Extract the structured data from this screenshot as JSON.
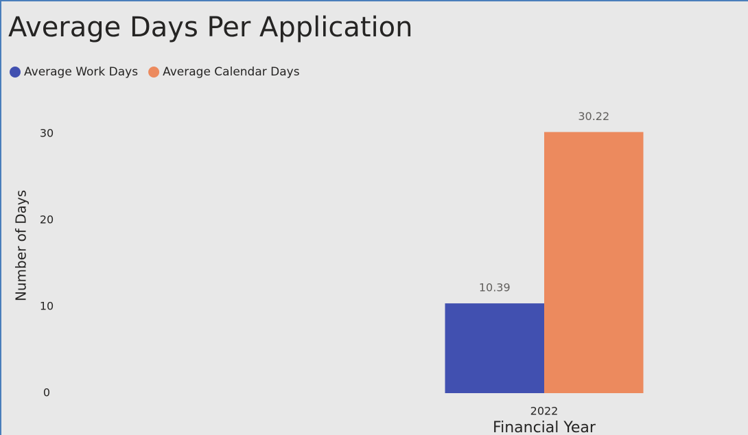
{
  "chart_data": {
    "type": "bar",
    "title": "Average Days Per Application",
    "categories": [
      "2022"
    ],
    "series": [
      {
        "name": "Average Work Days",
        "color": "#4150b0",
        "values": [
          10.39
        ]
      },
      {
        "name": "Average Calendar Days",
        "color": "#ec8a5e",
        "values": [
          30.22
        ]
      }
    ],
    "x_label": "Financial Year",
    "y_label": "Number of Days",
    "ylim": [
      0,
      32
    ],
    "yticks": [
      0,
      10,
      20,
      30
    ],
    "grid": false,
    "legend": "top-left"
  }
}
